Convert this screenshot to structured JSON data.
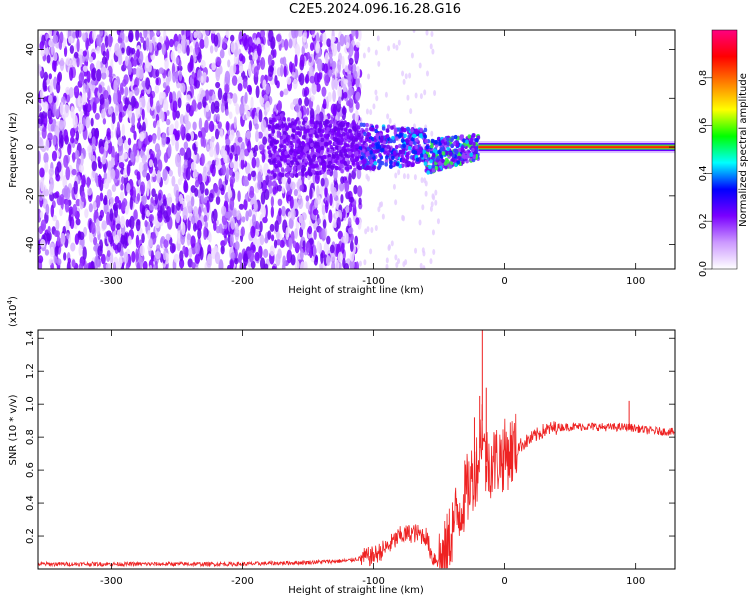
{
  "title": "C2E5.2024.096.16.28.G16",
  "chart_data": [
    {
      "type": "heatmap",
      "xlabel": "Height of straight line (km)",
      "ylabel": "Frequency (Hz)",
      "xlim": [
        -356,
        130
      ],
      "ylim": [
        -50,
        48
      ],
      "xticks": [
        "-300",
        "-200",
        "-100",
        "0",
        "100"
      ],
      "xtick_values": [
        -300,
        -200,
        -100,
        0,
        100
      ],
      "yticks": [
        "-40",
        "-20",
        "0",
        "20",
        "40"
      ],
      "ytick_values": [
        -40,
        -20,
        0,
        20,
        40
      ],
      "colorbar": {
        "label": "Normalized spectral amplitude",
        "range": [
          0,
          1
        ],
        "ticks": [
          "0.0",
          "0.2",
          "0.4",
          "0.6",
          "0.8"
        ],
        "tick_values": [
          0.0,
          0.2,
          0.4,
          0.6,
          0.8
        ],
        "colors": [
          "#ffffff",
          "#cc99ff",
          "#7a00ff",
          "#0000ff",
          "#00ffff",
          "#00ff00",
          "#ffff00",
          "#ff8000",
          "#ff0000",
          "#ff0080"
        ]
      },
      "features": {
        "noise_region_x": [
          -356,
          -110
        ],
        "signal_line_start_x": -20,
        "signal_line_freq": 0,
        "signal_line_amplitude": 0.85
      }
    },
    {
      "type": "line",
      "xlabel": "Height of straight line (km)",
      "ylabel": "SNR (10 * v/v)",
      "y_multiplier": "(x10",
      "y_multiplier_exp": "4",
      "y_multiplier_close": ")",
      "xlim": [
        -356,
        130
      ],
      "ylim": [
        0,
        14500
      ],
      "xticks": [
        "-300",
        "-200",
        "-100",
        "0",
        "100"
      ],
      "xtick_values": [
        -300,
        -200,
        -100,
        0,
        100
      ],
      "yticks": [
        "0.2",
        "0.4",
        "0.6",
        "0.8",
        "1.0",
        "1.2",
        "1.4"
      ],
      "ytick_values": [
        2000,
        4000,
        6000,
        8000,
        10000,
        12000,
        14000
      ],
      "color": "#ee2222",
      "series_points": [
        [
          -356,
          300
        ],
        [
          -300,
          300
        ],
        [
          -200,
          300
        ],
        [
          -150,
          400
        ],
        [
          -120,
          500
        ],
        [
          -100,
          800
        ],
        [
          -90,
          1300
        ],
        [
          -80,
          2000
        ],
        [
          -70,
          2200
        ],
        [
          -60,
          2000
        ],
        [
          -55,
          700
        ],
        [
          -50,
          600
        ],
        [
          -45,
          800
        ],
        [
          -40,
          2500
        ],
        [
          -30,
          4500
        ],
        [
          -25,
          5500
        ],
        [
          -20,
          6500
        ],
        [
          -17,
          9000
        ],
        [
          -15,
          6500
        ],
        [
          -10,
          6500
        ],
        [
          0,
          6900
        ],
        [
          10,
          7400
        ],
        [
          20,
          7900
        ],
        [
          30,
          8400
        ],
        [
          40,
          8600
        ],
        [
          60,
          8650
        ],
        [
          80,
          8600
        ],
        [
          95,
          8600
        ],
        [
          110,
          8400
        ],
        [
          130,
          8300
        ]
      ],
      "spikes": [
        [
          -17,
          14500
        ],
        [
          -19,
          10500
        ],
        [
          -14,
          11000
        ],
        [
          -23,
          9200
        ],
        [
          95,
          10200
        ]
      ]
    }
  ]
}
